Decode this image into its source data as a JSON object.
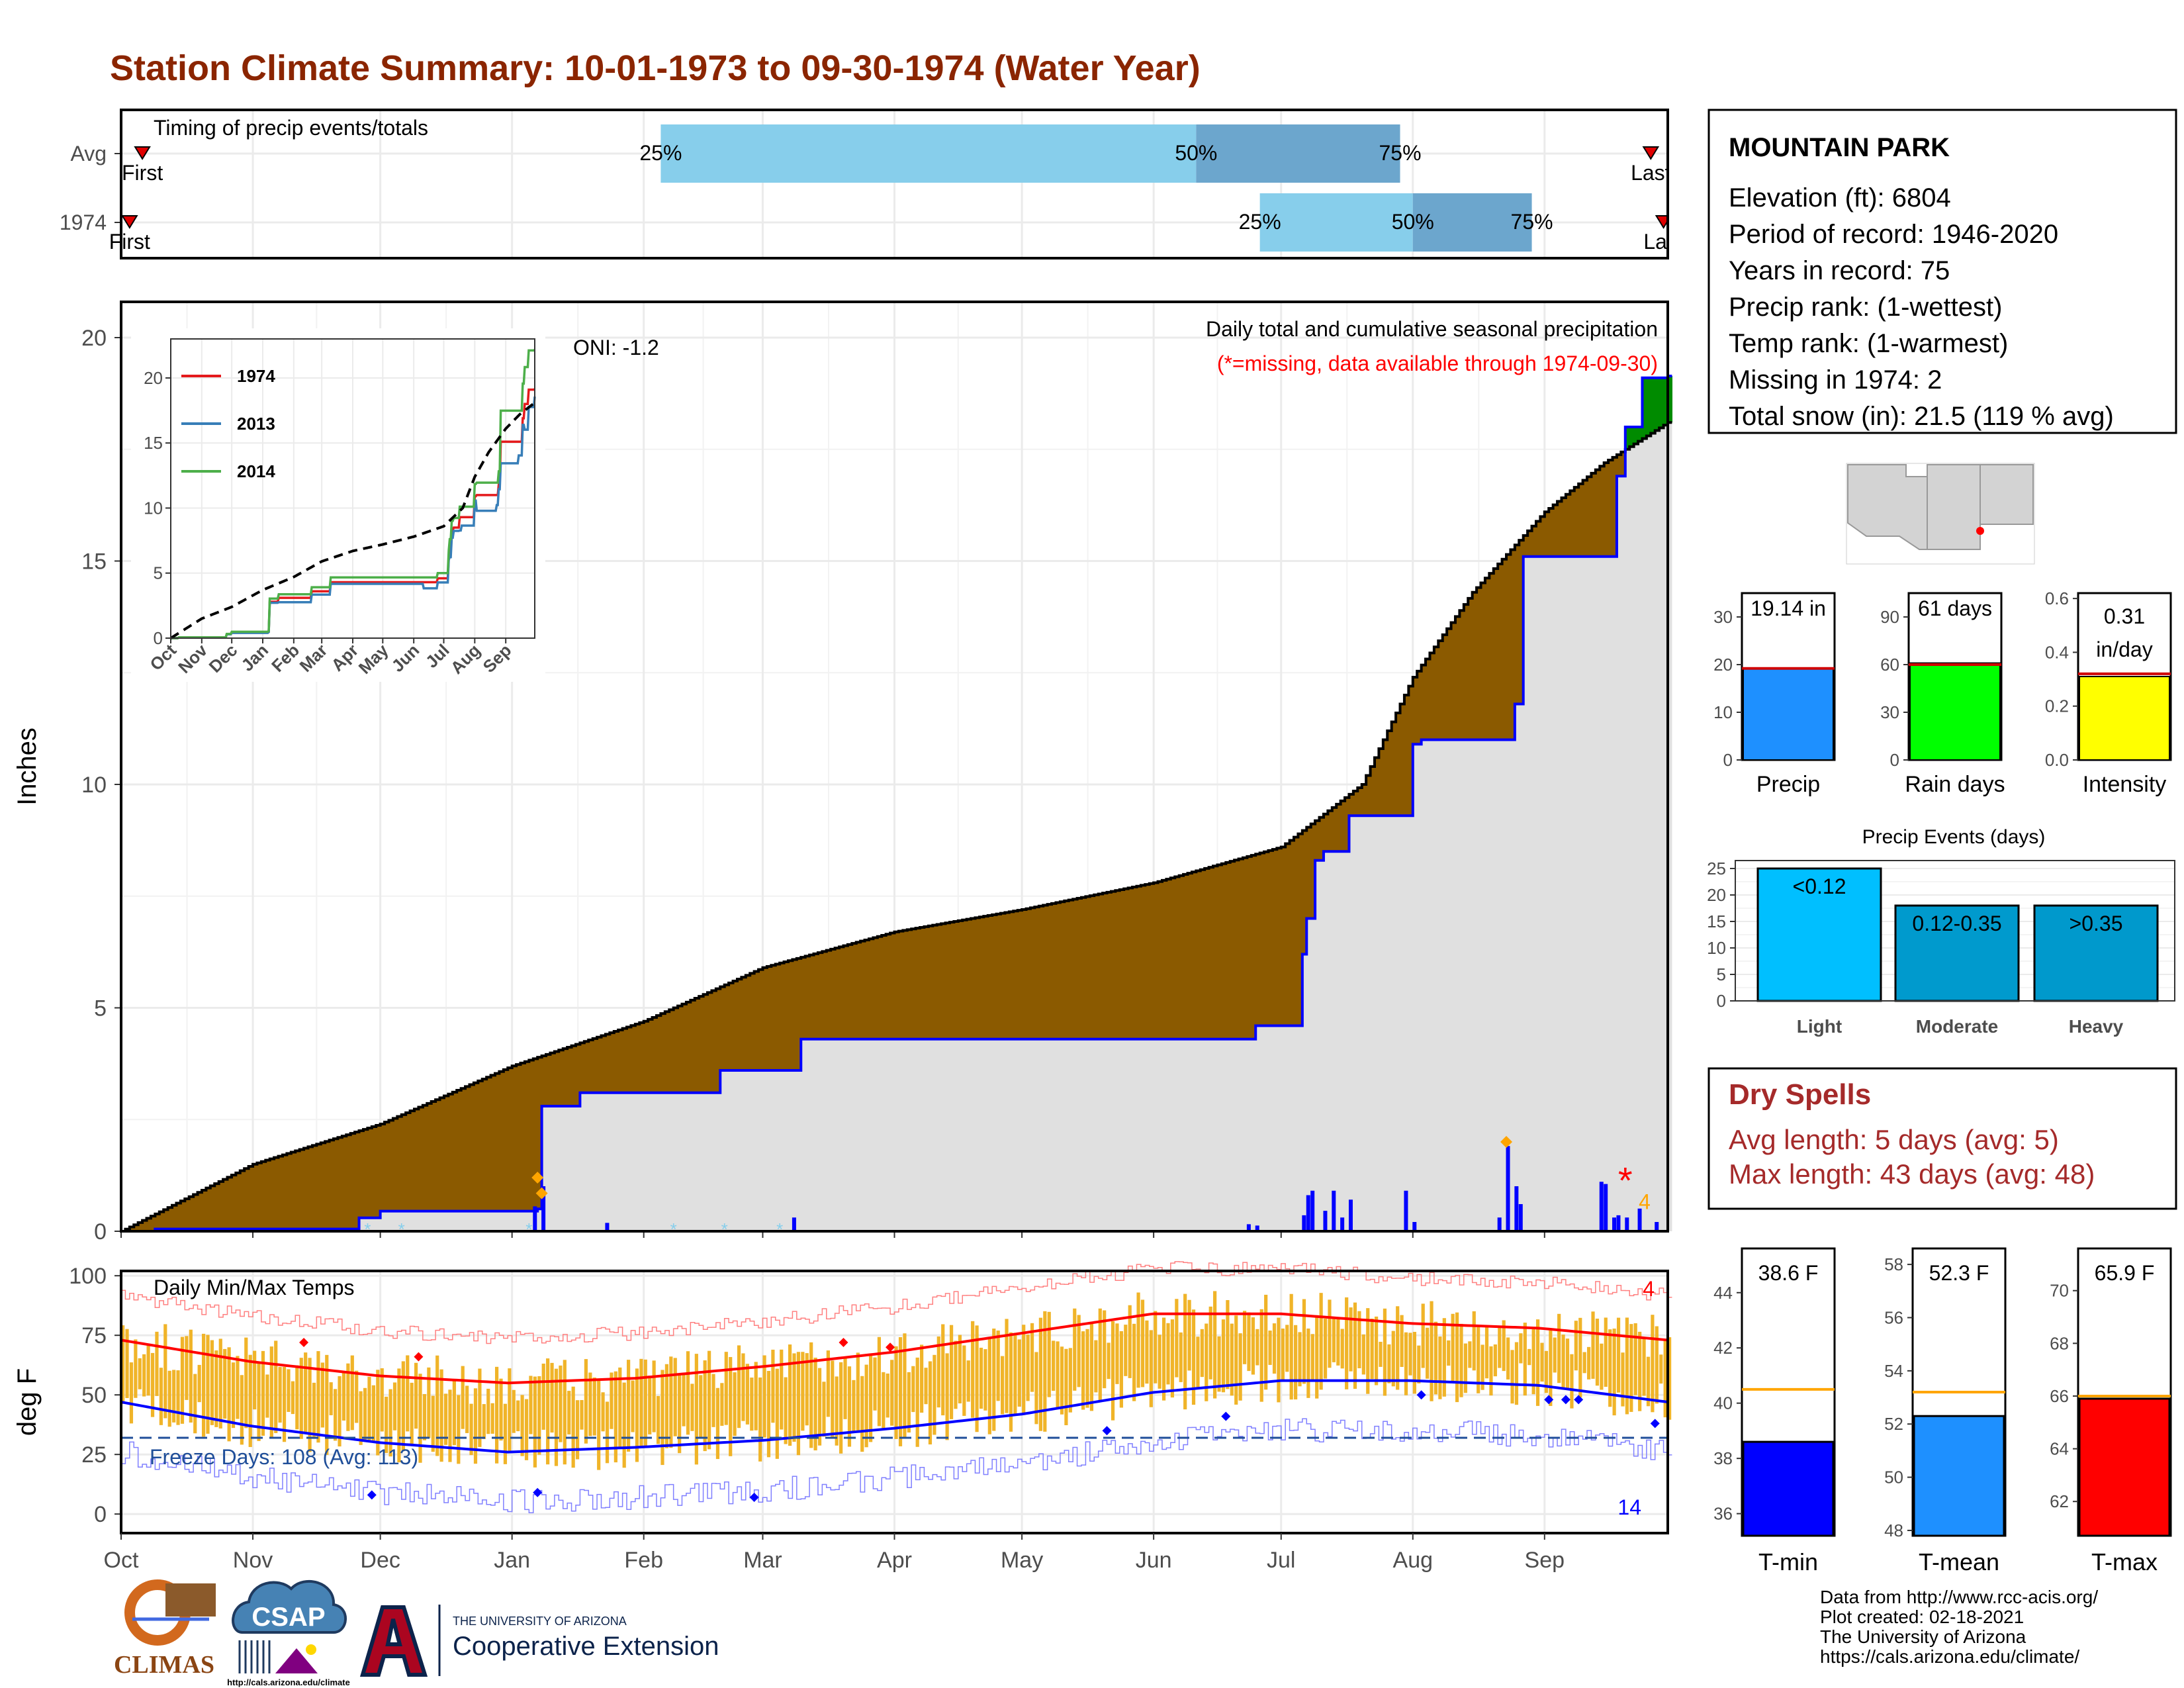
{
  "title": "Station Climate Summary: 10-01-1973 to 09-30-1974 (Water Year)",
  "colors": {
    "title": "#8B2500",
    "brown": "#8B5A00",
    "gray_fill": "#E0E0E0",
    "light_blue": "#87CEEB",
    "mid_blue": "#6CA6CD",
    "blue": "#0000FF",
    "red": "#FF0000",
    "green": "#008B00",
    "orange": "#FFA500",
    "temp_bar": "#F0B429",
    "dry_red": "#A52A2A"
  },
  "timing_panel": {
    "label": "Timing of precip events/totals",
    "rows": [
      {
        "label": "Avg",
        "first": "First",
        "last": "Last",
        "first_date": "1973-10-06",
        "last_date": "1974-09-26",
        "p25": "1974-02-05",
        "p50": "1974-06-11",
        "p75": "1974-07-29"
      },
      {
        "label": "1974",
        "first": "First",
        "last": "Last",
        "first_date": "1973-10-03",
        "last_date": "1974-09-29",
        "p25": "1974-06-26",
        "p50": "1974-08-01",
        "p75": "1974-08-29"
      }
    ],
    "pct_labels": [
      "25%",
      "50%",
      "75%"
    ]
  },
  "precip_panel": {
    "ylabel": "Inches",
    "yticks": [
      0,
      5,
      10,
      15,
      20
    ],
    "ylim": [
      0,
      20.8
    ],
    "annotation1": "Daily total and cumulative seasonal precipitation",
    "annotation2": "(*=missing, data available through 1974-09-30)",
    "oni": "ONI: -1.2",
    "missing_count": "4"
  },
  "inset": {
    "yticks": [
      0,
      5,
      10,
      15,
      20
    ],
    "months": [
      "Oct",
      "Nov",
      "Dec",
      "Jan",
      "Feb",
      "Mar",
      "Apr",
      "May",
      "Jun",
      "Jul",
      "Aug",
      "Sep"
    ],
    "legend": [
      {
        "name": "1974",
        "color": "#E41A1C"
      },
      {
        "name": "2013",
        "color": "#377EB8"
      },
      {
        "name": "2014",
        "color": "#4DAF4A"
      }
    ]
  },
  "temp_panel": {
    "ylabel": "deg F",
    "label": "Daily Min/Max Temps",
    "yticks": [
      0,
      25,
      50,
      75,
      100
    ],
    "freeze_label": "Freeze Days: 108 (Avg: 113)",
    "max_records": "4",
    "min_records": "14"
  },
  "months": [
    "Oct",
    "Nov",
    "Dec",
    "Jan",
    "Feb",
    "Mar",
    "Apr",
    "May",
    "Jun",
    "Jul",
    "Aug",
    "Sep"
  ],
  "station": {
    "name": "MOUNTAIN PARK",
    "lines": [
      "Elevation (ft): 6804",
      "Period of record: 1946-2020",
      "Years in record: 75",
      "Precip rank:  (1-wettest)",
      "Temp rank:  (1-warmest)",
      "Missing in 1974: 2",
      "Total snow (in): 21.5 (119 % avg)"
    ]
  },
  "mini_bars": [
    {
      "label": "Precip",
      "value": 19.14,
      "value_text": "19.14 in",
      "avg": 19.2,
      "max": 35,
      "ticks": [
        0,
        10,
        20,
        30
      ],
      "color": "#1E90FF"
    },
    {
      "label": "Rain days",
      "value": 61,
      "value_text": "61 days",
      "avg": 60,
      "max": 105,
      "ticks": [
        0,
        30,
        60,
        90
      ],
      "color": "#00FF00"
    },
    {
      "label": "Intensity",
      "value": 0.31,
      "value_text": "0.31\nin/day",
      "value_text1": "0.31",
      "value_text2": "in/day",
      "avg": 0.32,
      "max": 0.62,
      "ticks": [
        "0.0",
        "0.2",
        "0.4",
        "0.6"
      ],
      "color": "#FFFF00"
    }
  ],
  "events": {
    "title": "Precip Events (days)",
    "yticks": [
      0,
      5,
      10,
      15,
      20,
      25
    ],
    "bars": [
      {
        "label": "Light",
        "value": 25,
        "text": "<0.12",
        "color": "#00BFFF"
      },
      {
        "label": "Moderate",
        "value": 18,
        "text": "0.12-0.35",
        "color": "#009ACD"
      },
      {
        "label": "Heavy",
        "value": 18,
        "text": ">0.35",
        "color": "#0099CC"
      }
    ]
  },
  "dry_spells": {
    "title": "Dry Spells",
    "avg": "Avg length: 5 days (avg: 5)",
    "max": "Max length: 43 days (avg: 48)"
  },
  "temp_bars": [
    {
      "label": "T-min",
      "value": 38.6,
      "value_text": "38.6 F",
      "avg": 40.5,
      "ymin": 35.2,
      "ymax": 45.6,
      "ticks": [
        36,
        38,
        40,
        42,
        44
      ],
      "color": "#0000FF"
    },
    {
      "label": "T-mean",
      "value": 52.3,
      "value_text": "52.3 F",
      "avg": 53.2,
      "ymin": 47.8,
      "ymax": 58.6,
      "ticks": [
        48,
        50,
        52,
        54,
        56,
        58
      ],
      "color": "#1E90FF"
    },
    {
      "label": "T-max",
      "value": 65.9,
      "value_text": "65.9 F",
      "avg": 66.0,
      "ymin": 60.7,
      "ymax": 71.6,
      "ticks": [
        62,
        64,
        66,
        68,
        70
      ],
      "color": "#FF0000"
    }
  ],
  "footer": {
    "lines": [
      "Data from http://www.rcc-acis.org/",
      "Plot created: 02-18-2021",
      "The University of Arizona",
      "https://cals.arizona.edu/climate/"
    ],
    "climas": "CLIMAS",
    "csap": "CSAP",
    "csap_url": "http://cals.arizona.edu/climate",
    "ua_top": "THE UNIVERSITY OF ARIZONA",
    "ua_bottom": "Cooperative Extension"
  },
  "chart_data": [
    {
      "type": "area",
      "title": "Daily total and cumulative seasonal precipitation",
      "ylabel": "Inches",
      "ylim": [
        0,
        20.8
      ],
      "x_start": "1973-10-01",
      "x_end": "1974-09-30",
      "series": [
        {
          "name": "avg_cumulative",
          "x": [
            "1973-10-01",
            "1973-11-01",
            "1973-12-01",
            "1974-01-01",
            "1974-02-01",
            "1974-03-01",
            "1974-04-01",
            "1974-05-01",
            "1974-06-01",
            "1974-07-01",
            "1974-07-20",
            "1974-08-01",
            "1974-08-15",
            "1974-09-01",
            "1974-09-15",
            "1974-09-30"
          ],
          "values": [
            0,
            1.5,
            2.4,
            3.7,
            4.7,
            5.9,
            6.7,
            7.2,
            7.8,
            8.6,
            10.0,
            12.4,
            14.3,
            16.1,
            17.2,
            18.1
          ]
        },
        {
          "name": "1974_cumulative",
          "x": [
            "1973-10-01",
            "1973-10-09",
            "1973-11-26",
            "1973-12-01",
            "1974-01-07",
            "1974-01-08",
            "1974-01-17",
            "1974-02-19",
            "1974-03-10",
            "1974-06-11",
            "1974-06-25",
            "1974-07-06",
            "1974-07-07",
            "1974-07-09",
            "1974-07-11",
            "1974-07-17",
            "1974-07-19",
            "1974-08-01",
            "1974-08-03",
            "1974-08-23",
            "1974-08-25",
            "1974-08-27",
            "1974-09-14",
            "1974-09-18",
            "1974-09-20",
            "1974-09-24",
            "1974-09-30"
          ],
          "values": [
            0,
            0.05,
            0.3,
            0.45,
            0.5,
            2.8,
            3.1,
            3.6,
            4.3,
            4.3,
            4.6,
            6.2,
            7.0,
            8.3,
            8.5,
            9.3,
            9.3,
            10.9,
            11.0,
            11.0,
            11.8,
            15.1,
            15.1,
            16.9,
            18.0,
            19.1,
            19.14
          ]
        },
        {
          "name": "daily",
          "x": [
            "1974-01-06",
            "1974-01-08",
            "1974-01-23",
            "1974-03-08",
            "1974-06-23",
            "1974-06-25",
            "1974-07-06",
            "1974-07-07",
            "1974-07-08",
            "1974-07-11",
            "1974-07-13",
            "1974-07-15",
            "1974-07-17",
            "1974-07-30",
            "1974-08-01",
            "1974-08-21",
            "1974-08-23",
            "1974-08-25",
            "1974-08-26",
            "1974-09-14",
            "1974-09-15",
            "1974-09-17",
            "1974-09-18",
            "1974-09-20",
            "1974-09-23",
            "1974-09-27"
          ],
          "values": [
            0.55,
            1.0,
            0.18,
            0.3,
            0.15,
            0.12,
            0.35,
            0.8,
            0.9,
            0.45,
            0.9,
            0.3,
            0.7,
            0.9,
            0.2,
            0.3,
            1.9,
            1.0,
            0.6,
            1.1,
            1.05,
            0.3,
            0.35,
            0.3,
            0.5,
            0.2
          ]
        }
      ]
    },
    {
      "type": "line",
      "title": "Daily Min/Max Temps",
      "ylabel": "deg F",
      "ylim": [
        -8,
        102
      ],
      "series": [
        {
          "name": "avg_max",
          "x": [
            "Oct",
            "Nov",
            "Dec",
            "Jan",
            "Feb",
            "Mar",
            "Apr",
            "May",
            "Jun",
            "Jul",
            "Aug",
            "Sep",
            "Sep-end"
          ],
          "values": [
            73,
            64,
            58,
            55,
            57,
            62,
            68,
            76,
            84,
            84,
            80,
            78,
            73
          ]
        },
        {
          "name": "avg_min",
          "x": [
            "Oct",
            "Nov",
            "Dec",
            "Jan",
            "Feb",
            "Mar",
            "Apr",
            "May",
            "Jun",
            "Jul",
            "Aug",
            "Sep",
            "Sep-end"
          ],
          "values": [
            47,
            37,
            30,
            26,
            28,
            31,
            36,
            42,
            51,
            56,
            56,
            54,
            47
          ]
        },
        {
          "name": "freeze_line",
          "values": [
            32
          ]
        }
      ]
    },
    {
      "type": "bar",
      "categories": [
        "Precip",
        "Rain days",
        "Intensity"
      ],
      "values": [
        19.14,
        61,
        0.31
      ]
    },
    {
      "type": "bar",
      "title": "Precip Events (days)",
      "categories": [
        "Light",
        "Moderate",
        "Heavy"
      ],
      "values": [
        25,
        18,
        18
      ]
    },
    {
      "type": "bar",
      "categories": [
        "T-min",
        "T-mean",
        "T-max"
      ],
      "values": [
        38.6,
        52.3,
        65.9
      ]
    }
  ]
}
